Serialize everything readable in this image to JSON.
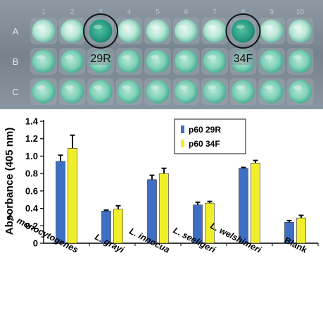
{
  "plate": {
    "column_numbers": [
      "1",
      "2",
      "3",
      "4",
      "5",
      "6",
      "7",
      "8",
      "9",
      "10"
    ],
    "row_letters": [
      "A",
      "B",
      "C"
    ],
    "annotations": [
      {
        "label": "29R",
        "row": "A",
        "column": 3
      },
      {
        "label": "34F",
        "row": "A",
        "column": 8
      }
    ],
    "colors": {
      "plate_background": "#7b8891",
      "well_light": "#cfeee3",
      "well_mid": "#86d3bb",
      "well_dark": "#2fa588",
      "well_positive": "#1a8f78"
    }
  },
  "chart_data": {
    "type": "bar",
    "title": "",
    "xlabel": "",
    "ylabel": "Absorbance (405 nm)",
    "ylim": [
      0,
      1.4
    ],
    "yticks": [
      "0",
      "0.2",
      "0.4",
      "0.6",
      "0.8",
      "1.0",
      "1.2",
      "1.4"
    ],
    "categories": [
      "L. monocytogenes",
      "L. grayi",
      "L. innocua",
      "L. seeligeri",
      "L. welshimeri",
      "Blank"
    ],
    "categories_italic": [
      true,
      true,
      true,
      true,
      true,
      false
    ],
    "series": [
      {
        "name": "p60 29R",
        "color": "#3e6fc4",
        "values": [
          0.94,
          0.37,
          0.73,
          0.44,
          0.86,
          0.24
        ],
        "errors": [
          0.07,
          0.01,
          0.05,
          0.03,
          0.01,
          0.02
        ]
      },
      {
        "name": "p60 34F",
        "color": "#f1ee2a",
        "values": [
          1.09,
          0.39,
          0.8,
          0.46,
          0.92,
          0.29
        ],
        "errors": [
          0.15,
          0.04,
          0.06,
          0.02,
          0.03,
          0.03
        ]
      }
    ],
    "legend_position": "top-right",
    "grid": false
  }
}
